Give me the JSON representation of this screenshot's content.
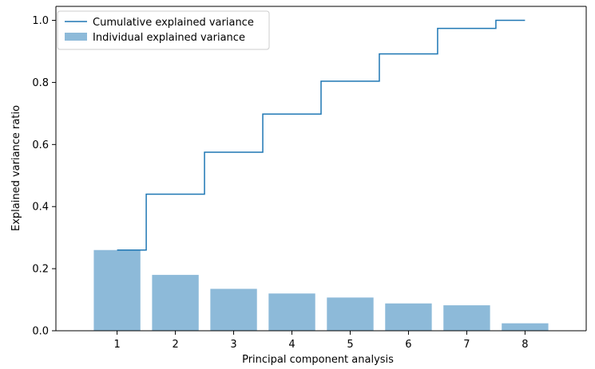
{
  "chart_data": {
    "type": "bar",
    "categories": [
      "1",
      "2",
      "3",
      "4",
      "5",
      "6",
      "7",
      "8"
    ],
    "xlabel": "Principal component analysis",
    "ylabel": "Explained variance ratio",
    "ylim": [
      0,
      1.045
    ],
    "yticks": [
      "0.0",
      "0.2",
      "0.4",
      "0.6",
      "0.8",
      "1.0"
    ],
    "grid": false,
    "legend_position": "upper-left",
    "series": [
      {
        "name": "Individual explained variance",
        "type": "bar",
        "values": [
          0.26,
          0.18,
          0.135,
          0.12,
          0.107,
          0.088,
          0.082,
          0.024
        ],
        "color": "#8dbad9"
      },
      {
        "name": "Cumulative explained variance",
        "type": "step",
        "values": [
          0.26,
          0.44,
          0.575,
          0.698,
          0.804,
          0.892,
          0.974,
          1.0
        ],
        "color": "#1f77b4"
      }
    ]
  }
}
